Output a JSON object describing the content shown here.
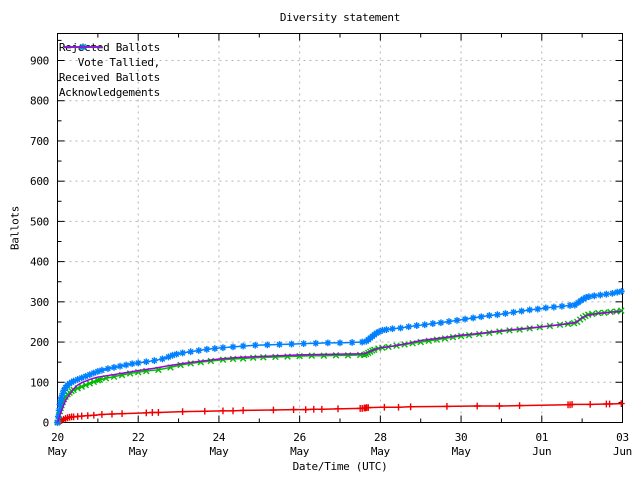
{
  "title": "Diversity statement",
  "chart_data": {
    "type": "line",
    "title": "Diversity statement",
    "xlabel": "Date/Time (UTC)",
    "ylabel": "Ballots",
    "x_unit": "days since 20 May 00:00 UTC",
    "x_axis": {
      "range_days": [
        0,
        14
      ],
      "major_tick_days": [
        0,
        2,
        4,
        6,
        8,
        10,
        12,
        14
      ],
      "minor_tick_days": [
        1,
        3,
        5,
        7,
        9,
        11,
        13
      ],
      "tick_labels": [
        [
          "20",
          "May"
        ],
        [
          "22",
          "May"
        ],
        [
          "24",
          "May"
        ],
        [
          "26",
          "May"
        ],
        [
          "28",
          "May"
        ],
        [
          "30",
          "May"
        ],
        [
          "01",
          "Jun"
        ],
        [
          "03",
          "Jun"
        ]
      ],
      "gridline_days": [
        2,
        4,
        6,
        8,
        10,
        12
      ]
    },
    "y_axis": {
      "range": [
        0,
        967
      ],
      "major_ticks": [
        0,
        100,
        200,
        300,
        400,
        500,
        600,
        700,
        800,
        900
      ],
      "minor_tick_step": 50,
      "gridlines": [
        100,
        200,
        300,
        400,
        500,
        600,
        700,
        800,
        900
      ]
    },
    "grid": true,
    "grid_color": "#b4b4b4",
    "border_color": "#000000",
    "background_color": "#ffffff",
    "legend_position": "top-left-inside",
    "series": [
      {
        "name": "Rejected Ballots",
        "color": "#ee0000",
        "marker": "plus",
        "points": [
          [
            0,
            0
          ],
          [
            0.06,
            3
          ],
          [
            0.1,
            5
          ],
          [
            0.15,
            8
          ],
          [
            0.2,
            10
          ],
          [
            0.25,
            12
          ],
          [
            0.3,
            13
          ],
          [
            0.35,
            14
          ],
          [
            0.4,
            14
          ],
          [
            0.5,
            15
          ],
          [
            0.6,
            16
          ],
          [
            0.75,
            17
          ],
          [
            0.9,
            18
          ],
          [
            1.1,
            20
          ],
          [
            1.35,
            21
          ],
          [
            1.6,
            22
          ],
          [
            2.2,
            24
          ],
          [
            2.35,
            25
          ],
          [
            2.5,
            25
          ],
          [
            3.1,
            27
          ],
          [
            3.65,
            28
          ],
          [
            4.1,
            29
          ],
          [
            4.35,
            29
          ],
          [
            4.6,
            30
          ],
          [
            5.35,
            31
          ],
          [
            5.85,
            32
          ],
          [
            6.15,
            32
          ],
          [
            6.35,
            33
          ],
          [
            6.55,
            33
          ],
          [
            6.95,
            34
          ],
          [
            7.5,
            35
          ],
          [
            7.55,
            35
          ],
          [
            7.6,
            36
          ],
          [
            7.63,
            36
          ],
          [
            7.66,
            37
          ],
          [
            7.7,
            37
          ],
          [
            8.1,
            38
          ],
          [
            8.45,
            38
          ],
          [
            8.75,
            39
          ],
          [
            9.65,
            40
          ],
          [
            10.4,
            41
          ],
          [
            10.95,
            41
          ],
          [
            11.45,
            42
          ],
          [
            12.65,
            44
          ],
          [
            12.7,
            44
          ],
          [
            12.75,
            45
          ],
          [
            13.2,
            45
          ],
          [
            13.6,
            46
          ],
          [
            13.68,
            46
          ],
          [
            13.97,
            47
          ]
        ]
      },
      {
        "name": "Vote Tallied,",
        "color": "#00bb00",
        "marker": "cross",
        "points": [
          [
            0,
            0
          ],
          [
            0.02,
            8
          ],
          [
            0.04,
            18
          ],
          [
            0.06,
            28
          ],
          [
            0.08,
            36
          ],
          [
            0.1,
            43
          ],
          [
            0.13,
            51
          ],
          [
            0.16,
            58
          ],
          [
            0.2,
            64
          ],
          [
            0.25,
            70
          ],
          [
            0.3,
            74
          ],
          [
            0.35,
            78
          ],
          [
            0.4,
            81
          ],
          [
            0.5,
            85
          ],
          [
            0.6,
            89
          ],
          [
            0.7,
            93
          ],
          [
            0.8,
            97
          ],
          [
            0.9,
            101
          ],
          [
            1.0,
            105
          ],
          [
            1.05,
            106
          ],
          [
            1.2,
            110
          ],
          [
            1.4,
            114
          ],
          [
            1.6,
            118
          ],
          [
            1.8,
            122
          ],
          [
            2.0,
            125
          ],
          [
            2.2,
            128
          ],
          [
            2.5,
            131
          ],
          [
            2.8,
            137
          ],
          [
            3.05,
            143
          ],
          [
            3.3,
            147
          ],
          [
            3.55,
            150
          ],
          [
            3.8,
            153
          ],
          [
            4.1,
            156
          ],
          [
            4.35,
            158
          ],
          [
            4.6,
            159
          ],
          [
            4.85,
            161
          ],
          [
            5.1,
            162
          ],
          [
            5.4,
            163
          ],
          [
            5.7,
            164
          ],
          [
            6.0,
            165
          ],
          [
            6.3,
            166
          ],
          [
            6.6,
            166
          ],
          [
            6.9,
            167
          ],
          [
            7.2,
            167
          ],
          [
            7.5,
            168
          ],
          [
            7.6,
            168
          ],
          [
            7.65,
            170
          ],
          [
            7.7,
            173
          ],
          [
            7.75,
            176
          ],
          [
            7.8,
            179
          ],
          [
            7.85,
            181
          ],
          [
            7.95,
            184
          ],
          [
            8.05,
            186
          ],
          [
            8.2,
            188
          ],
          [
            8.4,
            191
          ],
          [
            8.6,
            194
          ],
          [
            8.8,
            197
          ],
          [
            9.0,
            200
          ],
          [
            9.2,
            203
          ],
          [
            9.4,
            206
          ],
          [
            9.6,
            209
          ],
          [
            9.8,
            212
          ],
          [
            10.0,
            215
          ],
          [
            10.2,
            217
          ],
          [
            10.45,
            220
          ],
          [
            10.7,
            223
          ],
          [
            10.95,
            226
          ],
          [
            11.2,
            229
          ],
          [
            11.45,
            231
          ],
          [
            11.7,
            234
          ],
          [
            11.95,
            237
          ],
          [
            12.2,
            240
          ],
          [
            12.45,
            243
          ],
          [
            12.65,
            245
          ],
          [
            12.8,
            247
          ],
          [
            12.88,
            250
          ],
          [
            12.95,
            256
          ],
          [
            13.02,
            261
          ],
          [
            13.08,
            265
          ],
          [
            13.15,
            268
          ],
          [
            13.25,
            270
          ],
          [
            13.4,
            272
          ],
          [
            13.55,
            273
          ],
          [
            13.7,
            275
          ],
          [
            13.85,
            276
          ],
          [
            13.97,
            278
          ]
        ]
      },
      {
        "name": "Received Ballots",
        "color": "#0080ff",
        "marker": "star",
        "points": [
          [
            0,
            0
          ],
          [
            0.02,
            15
          ],
          [
            0.04,
            30
          ],
          [
            0.06,
            45
          ],
          [
            0.08,
            55
          ],
          [
            0.1,
            63
          ],
          [
            0.13,
            72
          ],
          [
            0.16,
            80
          ],
          [
            0.2,
            87
          ],
          [
            0.25,
            93
          ],
          [
            0.3,
            97
          ],
          [
            0.35,
            100
          ],
          [
            0.4,
            103
          ],
          [
            0.5,
            107
          ],
          [
            0.6,
            111
          ],
          [
            0.7,
            115
          ],
          [
            0.8,
            119
          ],
          [
            0.9,
            123
          ],
          [
            1.0,
            127
          ],
          [
            1.1,
            130
          ],
          [
            1.25,
            134
          ],
          [
            1.4,
            137
          ],
          [
            1.55,
            140
          ],
          [
            1.7,
            143
          ],
          [
            1.85,
            146
          ],
          [
            2.0,
            148
          ],
          [
            2.2,
            151
          ],
          [
            2.4,
            154
          ],
          [
            2.6,
            158
          ],
          [
            2.75,
            163
          ],
          [
            2.85,
            167
          ],
          [
            2.95,
            170
          ],
          [
            3.1,
            173
          ],
          [
            3.3,
            176
          ],
          [
            3.5,
            179
          ],
          [
            3.7,
            182
          ],
          [
            3.9,
            184
          ],
          [
            4.1,
            186
          ],
          [
            4.35,
            188
          ],
          [
            4.6,
            190
          ],
          [
            4.9,
            192
          ],
          [
            5.2,
            193
          ],
          [
            5.5,
            194
          ],
          [
            5.8,
            195
          ],
          [
            6.1,
            196
          ],
          [
            6.4,
            197
          ],
          [
            6.7,
            198
          ],
          [
            7.0,
            198
          ],
          [
            7.3,
            199
          ],
          [
            7.55,
            200
          ],
          [
            7.65,
            202
          ],
          [
            7.7,
            206
          ],
          [
            7.75,
            210
          ],
          [
            7.8,
            214
          ],
          [
            7.85,
            218
          ],
          [
            7.9,
            222
          ],
          [
            7.97,
            226
          ],
          [
            8.05,
            229
          ],
          [
            8.15,
            231
          ],
          [
            8.3,
            233
          ],
          [
            8.5,
            235
          ],
          [
            8.7,
            238
          ],
          [
            8.9,
            241
          ],
          [
            9.1,
            243
          ],
          [
            9.3,
            246
          ],
          [
            9.5,
            248
          ],
          [
            9.7,
            251
          ],
          [
            9.9,
            254
          ],
          [
            10.1,
            257
          ],
          [
            10.3,
            260
          ],
          [
            10.5,
            263
          ],
          [
            10.7,
            266
          ],
          [
            10.9,
            268
          ],
          [
            11.1,
            271
          ],
          [
            11.3,
            274
          ],
          [
            11.5,
            277
          ],
          [
            11.7,
            280
          ],
          [
            11.9,
            282
          ],
          [
            12.1,
            285
          ],
          [
            12.3,
            287
          ],
          [
            12.5,
            289
          ],
          [
            12.7,
            291
          ],
          [
            12.82,
            292
          ],
          [
            12.9,
            298
          ],
          [
            12.97,
            303
          ],
          [
            13.03,
            307
          ],
          [
            13.1,
            311
          ],
          [
            13.17,
            313
          ],
          [
            13.3,
            315
          ],
          [
            13.45,
            317
          ],
          [
            13.6,
            319
          ],
          [
            13.75,
            321
          ],
          [
            13.87,
            324
          ],
          [
            13.97,
            326
          ]
        ]
      },
      {
        "name": "Acknowledgements",
        "color": "#a000e0",
        "marker": "none",
        "points": [
          [
            0,
            0
          ],
          [
            0.1,
            30
          ],
          [
            0.2,
            55
          ],
          [
            0.3,
            70
          ],
          [
            0.4,
            84
          ],
          [
            0.5,
            93
          ],
          [
            0.6,
            99
          ],
          [
            0.7,
            103
          ],
          [
            0.8,
            107
          ],
          [
            0.9,
            110
          ],
          [
            1.0,
            113
          ],
          [
            1.4,
            119
          ],
          [
            1.7,
            124
          ],
          [
            2.0,
            129
          ],
          [
            2.4,
            135
          ],
          [
            2.8,
            142
          ],
          [
            3.2,
            148
          ],
          [
            3.6,
            153
          ],
          [
            4.0,
            158
          ],
          [
            4.5,
            162
          ],
          [
            5.0,
            164
          ],
          [
            5.5,
            166
          ],
          [
            6.0,
            168
          ],
          [
            6.5,
            169
          ],
          [
            7.0,
            170
          ],
          [
            7.6,
            171
          ],
          [
            7.8,
            179
          ],
          [
            8.0,
            186
          ],
          [
            8.3,
            190
          ],
          [
            8.7,
            197
          ],
          [
            9.0,
            204
          ],
          [
            9.5,
            210
          ],
          [
            10.0,
            217
          ],
          [
            10.5,
            222
          ],
          [
            11.0,
            228
          ],
          [
            11.5,
            233
          ],
          [
            12.0,
            238
          ],
          [
            12.5,
            244
          ],
          [
            12.85,
            249
          ],
          [
            13.0,
            261
          ],
          [
            13.15,
            267
          ],
          [
            13.4,
            271
          ],
          [
            13.7,
            274
          ],
          [
            13.97,
            276
          ]
        ]
      }
    ]
  }
}
